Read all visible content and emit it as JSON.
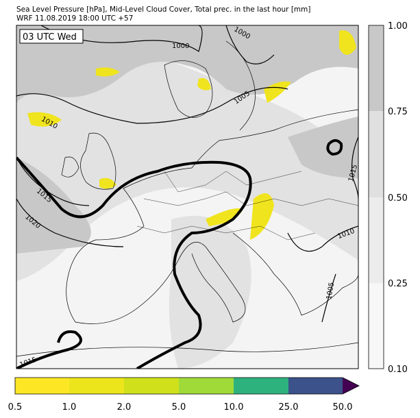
{
  "header": {
    "line1": "Sea Level Pressure [hPa], Mid-Level Cloud Cover, Total prec. in the last hour [mm]",
    "line2": "WRF 11.08.2019 18:00 UTC +57"
  },
  "map": {
    "time_label": "03 UTC Wed",
    "isobar_labels": [
      "1000",
      "1000",
      "1005",
      "1010",
      "1015",
      "1020",
      "1015",
      "1010",
      "1005",
      "1015"
    ]
  },
  "cloud_colorbar": {
    "ticks": [
      "0.10",
      "0.25",
      "0.50",
      "0.75",
      "1.00"
    ]
  },
  "precip_colorbar": {
    "ticks": [
      "0.5",
      "1.0",
      "2.0",
      "5.0",
      "10.0",
      "25.0",
      "50.0"
    ]
  }
}
